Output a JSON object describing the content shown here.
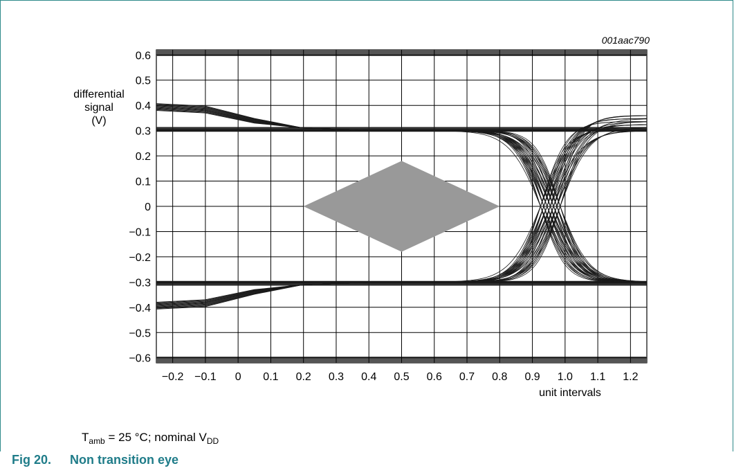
{
  "figure": {
    "id": "001aac790",
    "caption_number": "Fig 20.",
    "caption_title": "Non transition eye",
    "condition_prefix": "T",
    "condition_sub1": "amb",
    "condition_mid": " = 25 °C; nominal V",
    "condition_sub2": "DD"
  },
  "chart_data": {
    "type": "line",
    "ylabel_lines": [
      "differential",
      "signal",
      "(V)"
    ],
    "xlabel": "unit intervals",
    "xlim": [
      -0.25,
      1.25
    ],
    "ylim": [
      -0.62,
      0.62
    ],
    "xticks": [
      -0.2,
      -0.1,
      0,
      0.1,
      0.2,
      0.3,
      0.4,
      0.5,
      0.6,
      0.7,
      0.8,
      0.9,
      1.0,
      1.1,
      1.2
    ],
    "xtick_labels": [
      "−0.2",
      "−0.1",
      "0",
      "0.1",
      "0.2",
      "0.3",
      "0.4",
      "0.5",
      "0.6",
      "0.7",
      "0.8",
      "0.9",
      "1.0",
      "1.1",
      "1.2"
    ],
    "yticks": [
      0.6,
      0.5,
      0.4,
      0.3,
      0.2,
      0.1,
      0,
      -0.1,
      -0.2,
      -0.3,
      -0.4,
      -0.5,
      -0.6
    ],
    "ytick_labels": [
      "0.6",
      "0.5",
      "0.4",
      "0.3",
      "0.2",
      "0.1",
      "0",
      "−0.1",
      "−0.2",
      "−0.3",
      "−0.4",
      "−0.5",
      "−0.6"
    ],
    "grid": true,
    "eye_mask": [
      [
        0.2,
        0
      ],
      [
        0.5,
        0.18
      ],
      [
        0.8,
        0
      ],
      [
        0.5,
        -0.18
      ]
    ],
    "colors": {
      "trace": "#1a1a1a",
      "mask": "#999999",
      "bound_bar": "#555555",
      "grid": "#000000",
      "caption": "#1f7c89"
    }
  }
}
